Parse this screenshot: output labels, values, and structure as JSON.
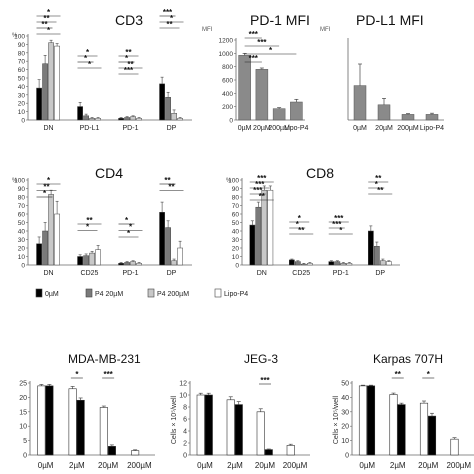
{
  "legend": {
    "entries": [
      {
        "label": "0µM",
        "color": "#000000"
      },
      {
        "label": "P4 20µM",
        "color": "#7a7a7a"
      },
      {
        "label": "P4 200µM",
        "color": "#c8c8c8"
      },
      {
        "label": "Lipo-P4",
        "color": "#ffffff"
      }
    ]
  },
  "chart_data": [
    {
      "type": "bar",
      "title": "CD3",
      "ylabel": "%",
      "ylim": [
        0,
        100
      ],
      "yticks": [
        "0",
        "10",
        "20",
        "30",
        "40",
        "50",
        "60",
        "70",
        "80",
        "90",
        "100"
      ],
      "categories": [
        "DN",
        "PD-L1",
        "PD-1",
        "DP"
      ],
      "series": [
        {
          "name": "0µM",
          "values": [
            38,
            16,
            2,
            43
          ]
        },
        {
          "name": "P4 20µM",
          "values": [
            67,
            5,
            3,
            27
          ]
        },
        {
          "name": "P4 200µM",
          "values": [
            92,
            2,
            4,
            8
          ]
        },
        {
          "name": "Lipo-P4",
          "values": [
            88,
            2,
            2,
            2
          ]
        }
      ],
      "error": [
        [
          10,
          5,
          1,
          8
        ],
        [
          10,
          2,
          1,
          6
        ],
        [
          3,
          1,
          1,
          4
        ],
        [
          3,
          1,
          1,
          1
        ]
      ],
      "significance": [
        "*",
        "**",
        "**",
        "*",
        "*",
        "*",
        "*",
        "**",
        "*",
        "**",
        "***",
        "***",
        "*",
        "**"
      ]
    },
    {
      "type": "bar",
      "title": "PD-1 MFI",
      "ylabel": "MFI",
      "ylim": [
        0,
        1200
      ],
      "yticks": [
        "0",
        "200",
        "400",
        "600",
        "800",
        "1000",
        "1200"
      ],
      "categories": [
        "0µM",
        "20µM",
        "200µM",
        "Lipo-P4"
      ],
      "series": [
        {
          "values": [
            970,
            760,
            170,
            270
          ]
        }
      ],
      "error": [
        30,
        20,
        15,
        40
      ],
      "significance": [
        "***",
        "***",
        "*",
        "***"
      ]
    },
    {
      "type": "bar",
      "title": "PD-L1 MFI",
      "ylabel": "MFI",
      "ylim": [
        0,
        1000
      ],
      "yticks": [],
      "categories": [
        "0µM",
        "20µM",
        "200µM",
        "Lipo-P4"
      ],
      "series": [
        {
          "values": [
            430,
            190,
            70,
            70
          ]
        }
      ],
      "error": [
        270,
        80,
        10,
        15
      ],
      "significance": []
    },
    {
      "type": "bar",
      "title": "CD4",
      "ylabel": "%",
      "ylim": [
        0,
        100
      ],
      "yticks": [
        "0",
        "10",
        "20",
        "30",
        "40",
        "50",
        "60",
        "70",
        "80",
        "90",
        "100"
      ],
      "categories": [
        "DN",
        "CD25",
        "PD-1",
        "DP"
      ],
      "series": [
        {
          "name": "0µM",
          "values": [
            25,
            10,
            2,
            62
          ]
        },
        {
          "name": "P4 20µM",
          "values": [
            40,
            11,
            3,
            44
          ]
        },
        {
          "name": "P4 200µM",
          "values": [
            83,
            14,
            4,
            5
          ]
        },
        {
          "name": "Lipo-P4",
          "values": [
            60,
            18,
            2,
            20
          ]
        }
      ],
      "error": [
        [
          8,
          2,
          1,
          12
        ],
        [
          10,
          2,
          1,
          8
        ],
        [
          5,
          2,
          1,
          2
        ],
        [
          15,
          5,
          1,
          8
        ]
      ],
      "significance": [
        "*",
        "**",
        "*",
        "**",
        "*",
        "*",
        "*",
        "*",
        "**",
        "**"
      ]
    },
    {
      "type": "bar",
      "title": "CD8",
      "ylabel": "%",
      "ylim": [
        0,
        100
      ],
      "yticks": [
        "0",
        "10",
        "20",
        "30",
        "40",
        "50",
        "60",
        "70",
        "80",
        "90",
        "100"
      ],
      "categories": [
        "DN",
        "CD25",
        "PD-1",
        "DP"
      ],
      "series": [
        {
          "name": "0µM",
          "values": [
            47,
            6,
            4,
            40
          ]
        },
        {
          "name": "P4 20µM",
          "values": [
            68,
            4,
            4,
            22
          ]
        },
        {
          "name": "P4 200µM",
          "values": [
            88,
            1,
            2,
            5
          ]
        },
        {
          "name": "Lipo-P4",
          "values": [
            88,
            2,
            2,
            4
          ]
        }
      ],
      "error": [
        [
          5,
          1,
          1,
          6
        ],
        [
          6,
          1,
          1,
          5
        ],
        [
          5,
          1,
          1,
          2
        ],
        [
          5,
          1,
          1,
          1
        ]
      ],
      "significance": [
        "***",
        "***",
        "***",
        "**",
        "*",
        "*",
        "**",
        "***",
        "***",
        "*",
        "**",
        "*",
        "**"
      ]
    },
    {
      "type": "bar",
      "title": "MDA-MB-231",
      "ylim": [
        0,
        25
      ],
      "yticks": [
        "0",
        "5",
        "10",
        "15",
        "20",
        "25"
      ],
      "categories": [
        "0µM",
        "2µM",
        "20µM",
        "200µM"
      ],
      "series": [
        {
          "values": [
            24,
            23,
            16.5,
            1.5
          ]
        },
        {
          "values": [
            24,
            19,
            3,
            null
          ]
        }
      ],
      "error": [
        [
          0.5,
          0.8,
          0.5,
          0.3
        ],
        [
          0.5,
          0.8,
          0.5,
          0
        ]
      ],
      "significance": [
        "*",
        "***"
      ]
    },
    {
      "type": "bar",
      "title": "JEG-3",
      "ylabel": "Cells × 10⁵/well",
      "ylim": [
        0,
        12
      ],
      "yticks": [
        "0",
        "2",
        "4",
        "6",
        "8",
        "10",
        "12"
      ],
      "categories": [
        "0µM",
        "2µM",
        "20µM",
        "200µM"
      ],
      "series": [
        {
          "values": [
            10,
            9.2,
            7.2,
            1.6
          ]
        },
        {
          "values": [
            10,
            8.4,
            0.9,
            null
          ]
        }
      ],
      "error": [
        [
          0.3,
          0.5,
          0.5,
          0.2
        ],
        [
          0.3,
          0.5,
          0.1,
          0
        ]
      ],
      "significance": [
        "***"
      ]
    },
    {
      "type": "bar",
      "title": "Karpas 707H",
      "ylabel": "Cells × 10⁵/well",
      "ylim": [
        0,
        50
      ],
      "yticks": [
        "0",
        "10",
        "20",
        "30",
        "40",
        "50"
      ],
      "categories": [
        "0µM",
        "2µM",
        "20µM",
        "200µM"
      ],
      "series": [
        {
          "values": [
            48,
            42,
            36,
            11
          ]
        },
        {
          "values": [
            48,
            35,
            27,
            null
          ]
        }
      ],
      "error": [
        [
          0.5,
          1,
          1.5,
          1
        ],
        [
          0.5,
          1,
          2,
          0
        ]
      ],
      "significance": [
        "**",
        "*"
      ]
    }
  ]
}
